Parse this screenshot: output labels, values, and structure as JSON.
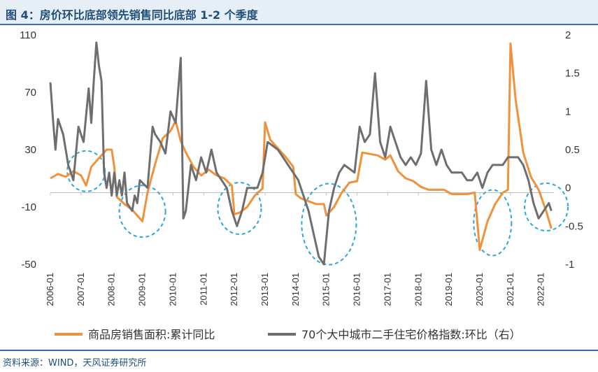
{
  "title": "图 4：房价环比底部领先销售同比底部 1-2 个季度",
  "source": "资料来源：WIND，天风证券研究所",
  "chart_data": {
    "type": "line",
    "title": "图 4：房价环比底部领先销售同比底部 1-2 个季度",
    "x_start": "2006-01",
    "x_end": "2022-06",
    "x_tick_labels": [
      "2006-01",
      "2007-01",
      "2008-01",
      "2009-01",
      "2010-01",
      "2011-01",
      "2012-01",
      "2013-01",
      "2014-01",
      "2015-01",
      "2016-01",
      "2017-01",
      "2018-01",
      "2019-01",
      "2020-01",
      "2021-01",
      "2022-01"
    ],
    "y_left": {
      "ticks": [
        110,
        70,
        30,
        -10,
        -50
      ],
      "range": [
        -50,
        110
      ]
    },
    "y_right": {
      "ticks": [
        2,
        1.5,
        1,
        0.5,
        0,
        -0.5,
        -1
      ],
      "range": [
        -1,
        2
      ]
    },
    "grid": false,
    "legend_position": "bottom",
    "series": [
      {
        "name": "商品房销售面积:累计同比",
        "axis": "left",
        "color": "#f0913c",
        "points": [
          [
            "2006-01",
            10
          ],
          [
            "2006-04",
            13
          ],
          [
            "2006-07",
            11
          ],
          [
            "2006-10",
            15
          ],
          [
            "2007-01",
            12
          ],
          [
            "2007-03",
            5
          ],
          [
            "2007-05",
            18
          ],
          [
            "2007-08",
            24
          ],
          [
            "2007-11",
            30
          ],
          [
            "2008-01",
            30
          ],
          [
            "2008-02",
            18
          ],
          [
            "2008-03",
            -3
          ],
          [
            "2008-06",
            -8
          ],
          [
            "2008-09",
            -12
          ],
          [
            "2008-12",
            -18
          ],
          [
            "2009-01",
            -20
          ],
          [
            "2009-03",
            0
          ],
          [
            "2009-06",
            20
          ],
          [
            "2009-09",
            38
          ],
          [
            "2009-12",
            43
          ],
          [
            "2010-02",
            50
          ],
          [
            "2010-04",
            36
          ],
          [
            "2010-06",
            28
          ],
          [
            "2010-09",
            18
          ],
          [
            "2010-12",
            12
          ],
          [
            "2011-03",
            16
          ],
          [
            "2011-06",
            12
          ],
          [
            "2011-09",
            10
          ],
          [
            "2011-12",
            5
          ],
          [
            "2012-01",
            -15
          ],
          [
            "2012-03",
            -14
          ],
          [
            "2012-06",
            -10
          ],
          [
            "2012-09",
            -2
          ],
          [
            "2012-12",
            3
          ],
          [
            "2013-01",
            49
          ],
          [
            "2013-03",
            37
          ],
          [
            "2013-06",
            31
          ],
          [
            "2013-09",
            25
          ],
          [
            "2013-12",
            18
          ],
          [
            "2014-01",
            -1
          ],
          [
            "2014-03",
            -4
          ],
          [
            "2014-06",
            -6
          ],
          [
            "2014-09",
            -8
          ],
          [
            "2014-12",
            -8
          ],
          [
            "2015-01",
            -16
          ],
          [
            "2015-04",
            -10
          ],
          [
            "2015-07",
            0
          ],
          [
            "2015-10",
            7
          ],
          [
            "2016-01",
            8
          ],
          [
            "2016-03",
            28
          ],
          [
            "2016-06",
            27
          ],
          [
            "2016-09",
            26
          ],
          [
            "2016-12",
            23
          ],
          [
            "2017-02",
            26
          ],
          [
            "2017-05",
            15
          ],
          [
            "2017-08",
            10
          ],
          [
            "2017-11",
            8
          ],
          [
            "2018-02",
            4
          ],
          [
            "2018-05",
            2
          ],
          [
            "2018-08",
            2
          ],
          [
            "2018-11",
            2
          ],
          [
            "2019-02",
            -1
          ],
          [
            "2019-05",
            -1
          ],
          [
            "2019-08",
            -1
          ],
          [
            "2019-11",
            0
          ],
          [
            "2020-01",
            -40
          ],
          [
            "2020-04",
            -20
          ],
          [
            "2020-07",
            -8
          ],
          [
            "2020-10",
            0
          ],
          [
            "2020-12",
            2
          ],
          [
            "2021-01",
            104
          ],
          [
            "2021-03",
            65
          ],
          [
            "2021-06",
            28
          ],
          [
            "2021-09",
            11
          ],
          [
            "2021-12",
            2
          ],
          [
            "2022-03",
            -13
          ],
          [
            "2022-05",
            -25
          ]
        ]
      },
      {
        "name": "70个大中城市二手住宅价格指数:环比（右）",
        "axis": "right",
        "color": "#6e6e6e",
        "points": [
          [
            "2006-01",
            1.38
          ],
          [
            "2006-02",
            0.9
          ],
          [
            "2006-03",
            0.5
          ],
          [
            "2006-04",
            0.9
          ],
          [
            "2006-06",
            0.7
          ],
          [
            "2006-08",
            0.3
          ],
          [
            "2006-10",
            0.1
          ],
          [
            "2006-12",
            0.8
          ],
          [
            "2007-02",
            0.6
          ],
          [
            "2007-04",
            1.3
          ],
          [
            "2007-05",
            0.85
          ],
          [
            "2007-06",
            1.4
          ],
          [
            "2007-07",
            1.9
          ],
          [
            "2007-08",
            1.6
          ],
          [
            "2007-09",
            1.4
          ],
          [
            "2007-10",
            0.2
          ],
          [
            "2007-11",
            0.0
          ],
          [
            "2007-12",
            0.2
          ],
          [
            "2008-01",
            -0.1
          ],
          [
            "2008-02",
            0.2
          ],
          [
            "2008-03",
            -0.1
          ],
          [
            "2008-04",
            0.1
          ],
          [
            "2008-05",
            -0.1
          ],
          [
            "2008-06",
            0.2
          ],
          [
            "2008-07",
            -0.2
          ],
          [
            "2008-08",
            -0.25
          ],
          [
            "2008-09",
            -0.3
          ],
          [
            "2008-10",
            -0.1
          ],
          [
            "2008-11",
            -0.2
          ],
          [
            "2008-12",
            0.1
          ],
          [
            "2009-03",
            0.0
          ],
          [
            "2009-05",
            0.8
          ],
          [
            "2009-06",
            0.7
          ],
          [
            "2009-08",
            0.6
          ],
          [
            "2009-10",
            0.45
          ],
          [
            "2009-12",
            1.0
          ],
          [
            "2010-02",
            0.85
          ],
          [
            "2010-04",
            1.7
          ],
          [
            "2010-05",
            -0.4
          ],
          [
            "2010-06",
            -0.3
          ],
          [
            "2010-08",
            0.3
          ],
          [
            "2010-10",
            0.1
          ],
          [
            "2010-12",
            0.4
          ],
          [
            "2011-02",
            0.2
          ],
          [
            "2011-04",
            0.5
          ],
          [
            "2011-06",
            0.2
          ],
          [
            "2011-08",
            0.1
          ],
          [
            "2011-10",
            0.0
          ],
          [
            "2011-12",
            -0.3
          ],
          [
            "2012-02",
            -0.5
          ],
          [
            "2012-04",
            -0.3
          ],
          [
            "2012-06",
            0.0
          ],
          [
            "2012-08",
            0.0
          ],
          [
            "2012-10",
            0.0
          ],
          [
            "2012-12",
            0.2
          ],
          [
            "2013-02",
            0.6
          ],
          [
            "2013-04",
            0.55
          ],
          [
            "2013-06",
            0.5
          ],
          [
            "2013-08",
            0.4
          ],
          [
            "2013-10",
            0.3
          ],
          [
            "2013-12",
            0.2
          ],
          [
            "2014-02",
            0.1
          ],
          [
            "2014-04",
            -0.1
          ],
          [
            "2014-06",
            -0.3
          ],
          [
            "2014-08",
            -0.6
          ],
          [
            "2014-10",
            -0.9
          ],
          [
            "2014-12",
            -1.0
          ],
          [
            "2015-02",
            -0.3
          ],
          [
            "2015-04",
            0.0
          ],
          [
            "2015-06",
            0.2
          ],
          [
            "2015-08",
            0.3
          ],
          [
            "2015-10",
            0.25
          ],
          [
            "2015-12",
            0.2
          ],
          [
            "2016-02",
            0.8
          ],
          [
            "2016-04",
            0.6
          ],
          [
            "2016-06",
            0.7
          ],
          [
            "2016-08",
            1.5
          ],
          [
            "2016-10",
            0.6
          ],
          [
            "2016-12",
            0.4
          ],
          [
            "2017-02",
            0.8
          ],
          [
            "2017-04",
            0.6
          ],
          [
            "2017-06",
            0.4
          ],
          [
            "2017-08",
            0.3
          ],
          [
            "2017-10",
            0.4
          ],
          [
            "2017-12",
            0.3
          ],
          [
            "2018-02",
            0.45
          ],
          [
            "2018-04",
            1.4
          ],
          [
            "2018-06",
            0.5
          ],
          [
            "2018-08",
            0.3
          ],
          [
            "2018-10",
            0.5
          ],
          [
            "2018-12",
            0.3
          ],
          [
            "2019-02",
            0.2
          ],
          [
            "2019-04",
            0.2
          ],
          [
            "2019-06",
            0.2
          ],
          [
            "2019-08",
            0.1
          ],
          [
            "2019-10",
            0.1
          ],
          [
            "2019-12",
            0.2
          ],
          [
            "2020-02",
            0.0
          ],
          [
            "2020-04",
            0.2
          ],
          [
            "2020-06",
            0.3
          ],
          [
            "2020-08",
            0.3
          ],
          [
            "2020-10",
            0.3
          ],
          [
            "2020-12",
            0.4
          ],
          [
            "2021-02",
            0.4
          ],
          [
            "2021-04",
            0.4
          ],
          [
            "2021-06",
            0.3
          ],
          [
            "2021-08",
            0.1
          ],
          [
            "2021-10",
            -0.2
          ],
          [
            "2021-12",
            -0.4
          ],
          [
            "2022-02",
            -0.3
          ],
          [
            "2022-04",
            -0.2
          ],
          [
            "2022-05",
            -0.3
          ]
        ]
      }
    ],
    "annotations": [
      {
        "type": "dashed-ellipse",
        "center": [
          "2007-03",
          15
        ],
        "axis": "left"
      },
      {
        "type": "dashed-ellipse",
        "center": [
          "2009-01",
          -13
        ],
        "axis": "left"
      },
      {
        "type": "dashed-ellipse",
        "center": [
          "2012-03",
          -11
        ],
        "axis": "left"
      },
      {
        "type": "dashed-ellipse",
        "center": [
          "2015-02",
          -22
        ],
        "axis": "left"
      },
      {
        "type": "dashed-ellipse",
        "center": [
          "2020-06",
          -21
        ],
        "axis": "left"
      },
      {
        "type": "dashed-ellipse",
        "center": [
          "2022-03",
          -10
        ],
        "axis": "left"
      }
    ]
  }
}
